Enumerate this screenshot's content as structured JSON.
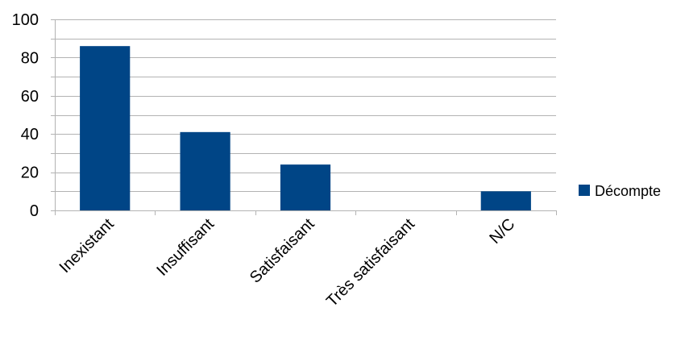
{
  "chart_data": {
    "type": "bar",
    "categories": [
      "Inexistant",
      "Insuffisant",
      "Satisfaisant",
      "Très satisfaisant",
      "N/C"
    ],
    "series": [
      {
        "name": "Décompte",
        "values": [
          86,
          41,
          24,
          0,
          10
        ]
      }
    ],
    "y_ticks": [
      "0",
      "20",
      "40",
      "60",
      "80",
      "100"
    ],
    "ylim": [
      0,
      100
    ],
    "grid": true,
    "minor_grid": true,
    "legend_position": "right",
    "bar_color": "#004586"
  }
}
